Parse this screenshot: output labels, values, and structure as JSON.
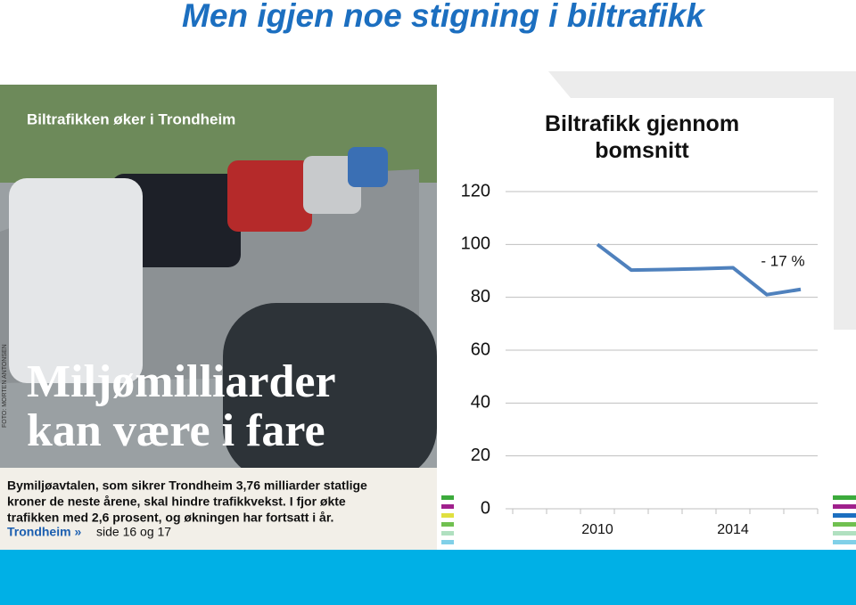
{
  "slide_title": "Men igjen noe stigning i biltrafikk",
  "clipping": {
    "kicker": "Biltrafikken øker i Trondheim",
    "headline": [
      "Miljømilliarder",
      "kan være i fare"
    ],
    "body": [
      "Bymiljøavtalen, som sikrer Trondheim 3,76 milliarder statlige",
      "kroner de neste årene, skal hindre trafikkvekst. I fjor økte",
      "trafikken med 2,6 prosent, og økningen har fortsatt i år."
    ],
    "reference": "Trondheim »",
    "pages": "side 16 og 17",
    "credit": "FOTO: MORTEN ANTONSEN"
  },
  "chart_data": {
    "type": "line",
    "title": "Biltrafikk gjennom bomsnitt",
    "categories": [
      null,
      null,
      "2010",
      null,
      null,
      null,
      "2014",
      null,
      null
    ],
    "values": [
      null,
      null,
      100,
      90.3,
      90.5,
      90.8,
      91.2,
      81,
      83
    ],
    "color": "#4f81bd",
    "ylim": [
      0,
      120
    ],
    "yticks": [
      0,
      20,
      40,
      60,
      80,
      100,
      120
    ],
    "grid": true,
    "annotation": "- 17 %"
  }
}
